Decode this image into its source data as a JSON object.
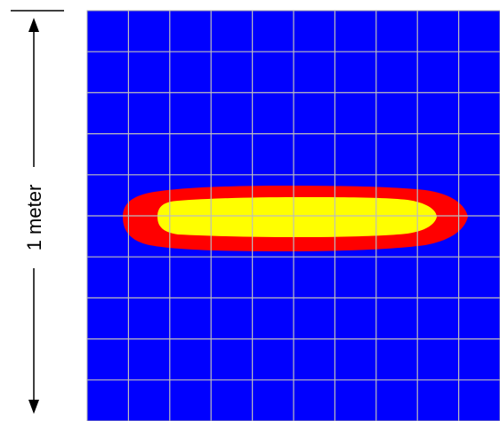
{
  "scale": {
    "label": "1 meter"
  },
  "grid": {
    "columns": 10,
    "rows": 10
  },
  "colors": {
    "background": "#0000FF",
    "grid_lines": "#BDBDBD",
    "outer_zone": "#FF0000",
    "inner_zone": "#FFFF00",
    "frame": "#AAAAAA",
    "annotation": "#000000"
  }
}
